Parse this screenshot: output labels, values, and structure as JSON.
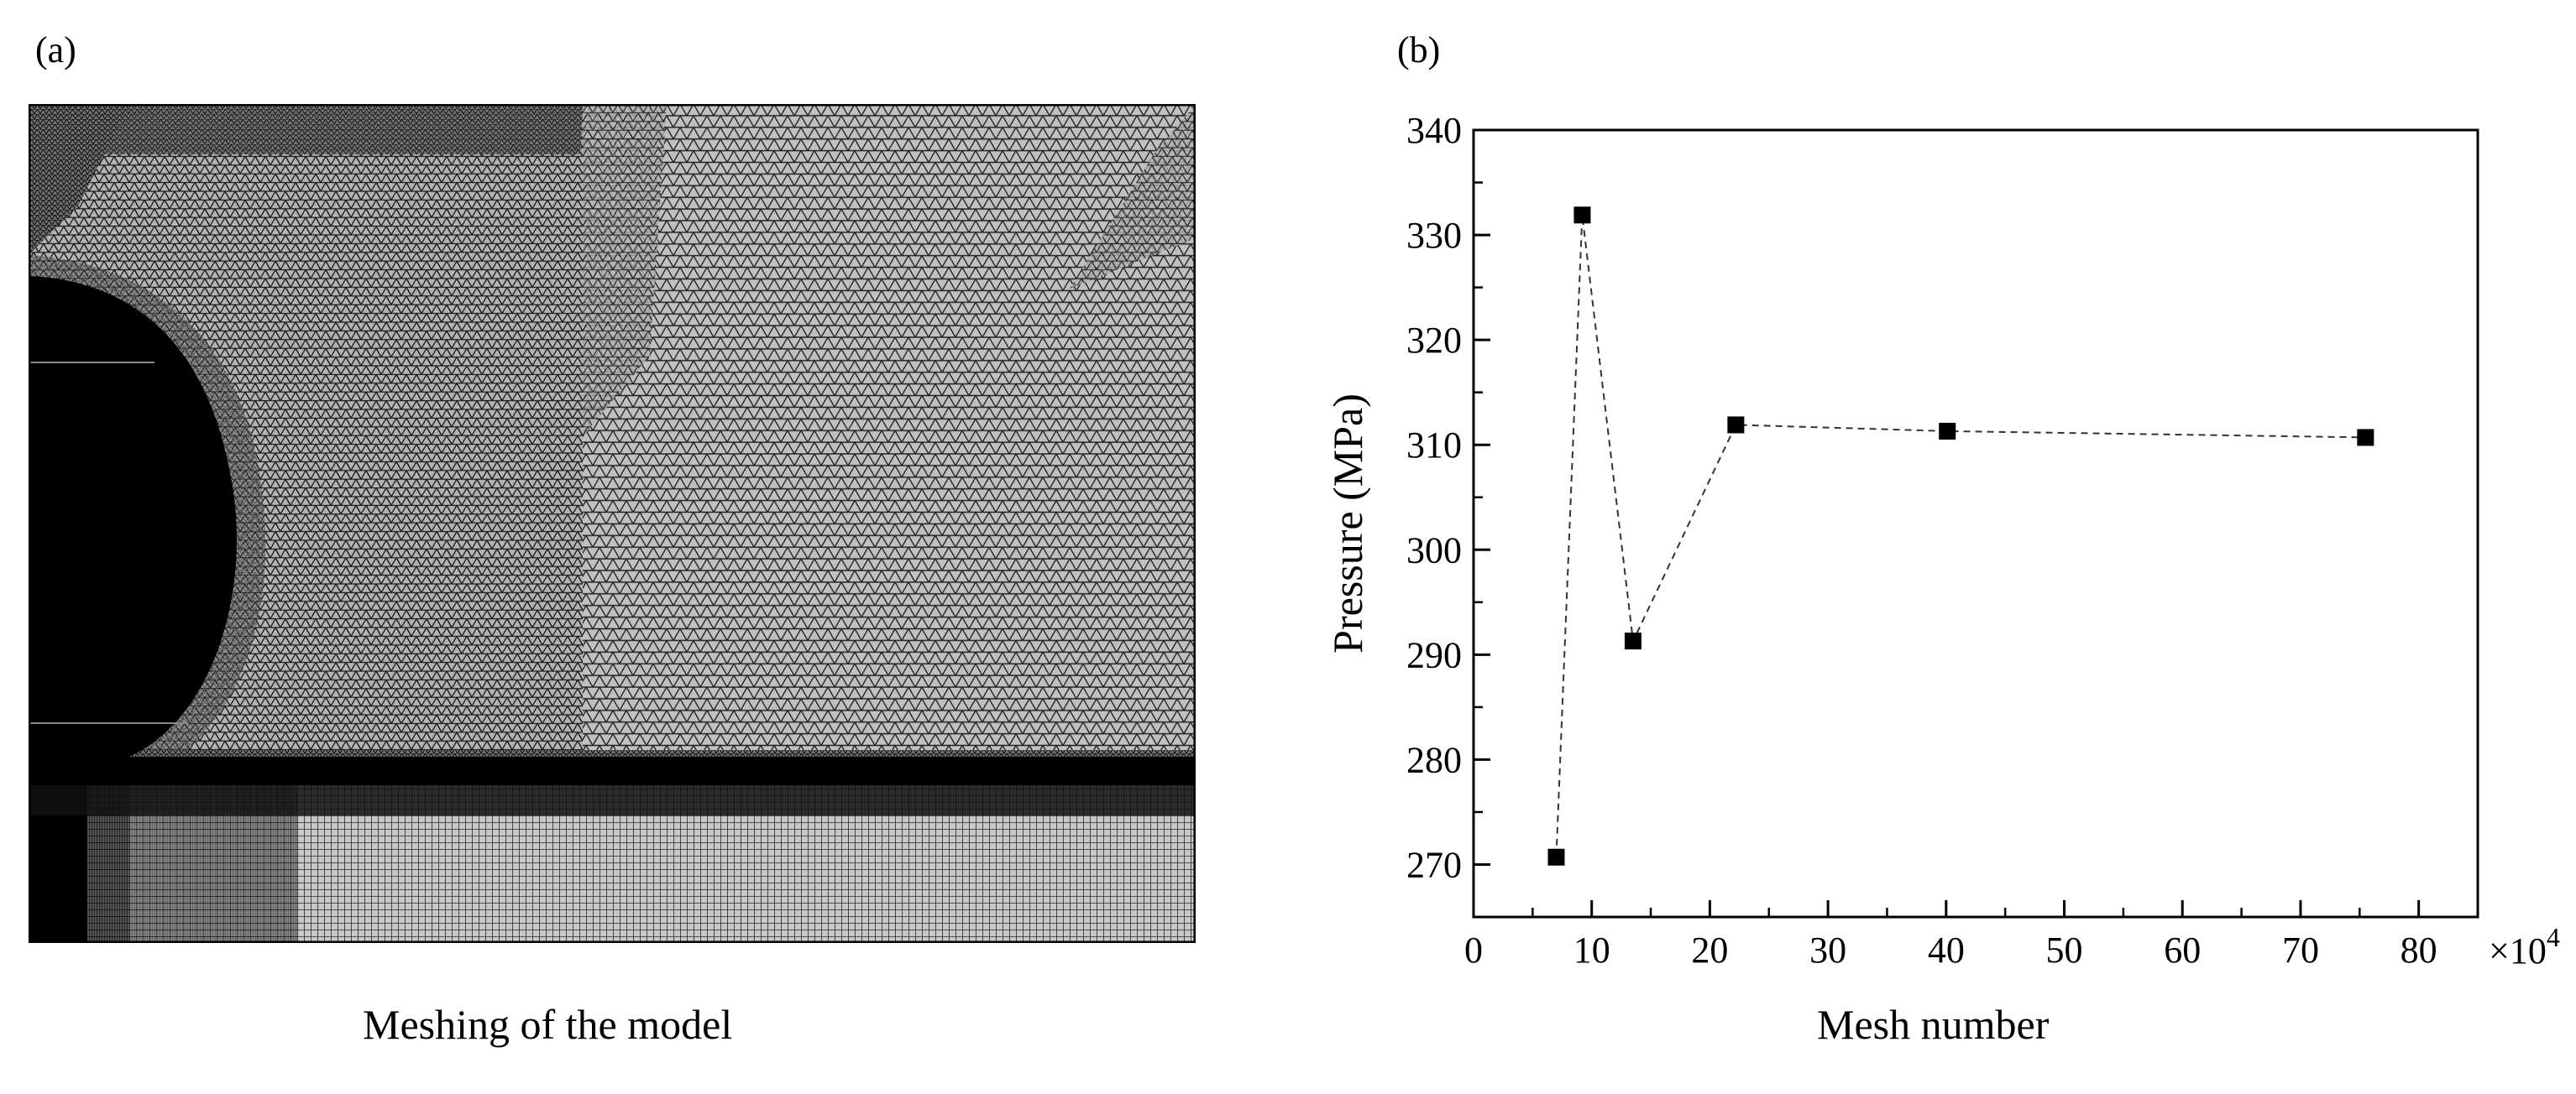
{
  "panels": {
    "a": {
      "label": "(a)",
      "caption": "Meshing of the model"
    },
    "b": {
      "label": "(b)",
      "caption": "Mesh number"
    }
  },
  "mesh_image": {
    "description_icon": "mesh-icon"
  },
  "chart_data": {
    "type": "scatter",
    "line_style": "dashed",
    "marker": "square",
    "x": [
      7,
      9.2,
      13.5,
      22.2,
      40.1,
      75.5
    ],
    "y": [
      270.7,
      331.9,
      291.3,
      311.9,
      311.3,
      310.7
    ],
    "xlabel": "Mesh number",
    "ylabel": "Pressure (MPa)",
    "x_multiplier": "×10",
    "x_multiplier_exp": "4",
    "xlim": [
      0,
      85
    ],
    "ylim": [
      265,
      340
    ],
    "xticks": [
      0,
      10,
      20,
      30,
      40,
      50,
      60,
      70,
      80
    ],
    "yticks": [
      270,
      280,
      290,
      300,
      310,
      320,
      330,
      340
    ],
    "grid": false,
    "legend": "none"
  }
}
